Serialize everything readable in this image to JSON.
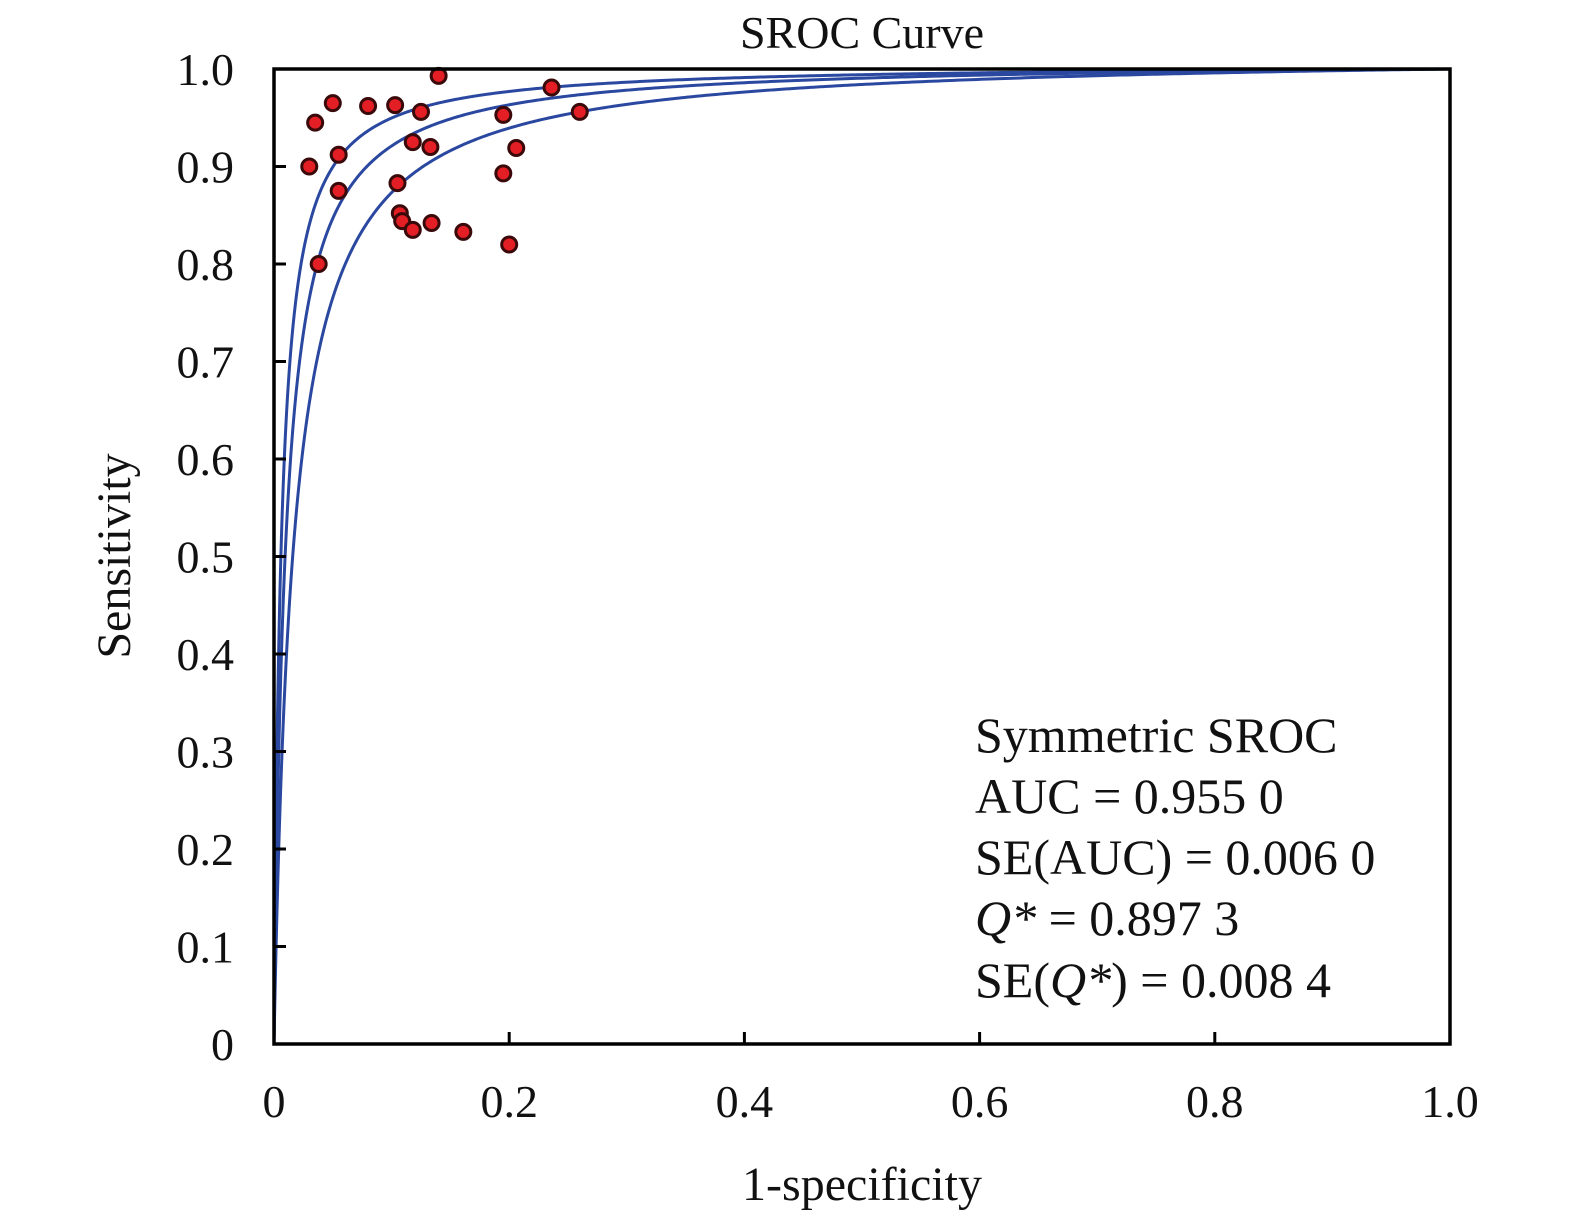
{
  "chart_data": {
    "type": "scatter",
    "title": "SROC Curve",
    "xlabel": "1-specificity",
    "ylabel": "Sensitivity",
    "xlim": [
      0,
      1.0
    ],
    "ylim": [
      0,
      1.0
    ],
    "x_ticks": [
      "0",
      "0.2",
      "0.4",
      "0.6",
      "0.8",
      "1.0"
    ],
    "y_ticks": [
      "0",
      "0.1",
      "0.2",
      "0.3",
      "0.4",
      "0.5",
      "0.6",
      "0.7",
      "0.8",
      "0.9",
      "1.0"
    ],
    "grid": false,
    "colors": {
      "curve": "#2b48a0",
      "point_fill": "#e31e24",
      "point_stroke": "#3a0a0a",
      "axis": "#000000"
    },
    "points": [
      {
        "x": 0.035,
        "y": 0.945
      },
      {
        "x": 0.05,
        "y": 0.965
      },
      {
        "x": 0.08,
        "y": 0.962
      },
      {
        "x": 0.103,
        "y": 0.963
      },
      {
        "x": 0.125,
        "y": 0.956
      },
      {
        "x": 0.14,
        "y": 0.993
      },
      {
        "x": 0.03,
        "y": 0.9
      },
      {
        "x": 0.055,
        "y": 0.912
      },
      {
        "x": 0.055,
        "y": 0.875
      },
      {
        "x": 0.118,
        "y": 0.925
      },
      {
        "x": 0.133,
        "y": 0.92
      },
      {
        "x": 0.105,
        "y": 0.883
      },
      {
        "x": 0.107,
        "y": 0.852
      },
      {
        "x": 0.109,
        "y": 0.844
      },
      {
        "x": 0.118,
        "y": 0.835
      },
      {
        "x": 0.134,
        "y": 0.842
      },
      {
        "x": 0.161,
        "y": 0.833
      },
      {
        "x": 0.195,
        "y": 0.953
      },
      {
        "x": 0.195,
        "y": 0.893
      },
      {
        "x": 0.206,
        "y": 0.919
      },
      {
        "x": 0.2,
        "y": 0.82
      },
      {
        "x": 0.236,
        "y": 0.981
      },
      {
        "x": 0.26,
        "y": 0.956
      },
      {
        "x": 0.038,
        "y": 0.8
      }
    ],
    "curves": [
      {
        "dor": 170
      },
      {
        "dor": 105
      },
      {
        "dor": 62
      }
    ],
    "annotation": {
      "line1": "Symmetric SROC",
      "line2": "AUC = 0.955 0",
      "line3": "SE(AUC) = 0.006 0",
      "q_symbol": "Q*",
      "q_value": " = 0.897 3",
      "se_q_prefix": "SE(",
      "se_q_suffix": ") = 0.008 4"
    }
  }
}
